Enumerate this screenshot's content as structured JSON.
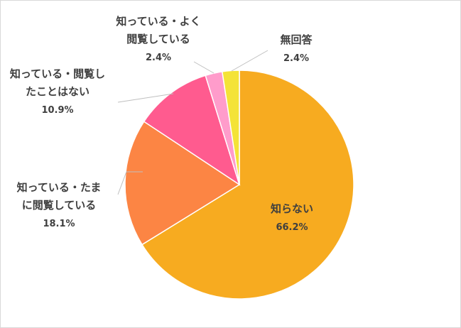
{
  "chart_data": {
    "type": "pie",
    "title": "",
    "start_angle_deg": 0,
    "direction": "clockwise",
    "legend": "none",
    "slices": [
      {
        "label_lines": [
          "知らない"
        ],
        "value": 66.2,
        "value_label": "66.2%",
        "color": "#F7AB20"
      },
      {
        "label_lines": [
          "知っている・たま",
          "に閲覧している"
        ],
        "value": 18.1,
        "value_label": "18.1%",
        "color": "#FC8544"
      },
      {
        "label_lines": [
          "知っている・閲覧し",
          "たことはない"
        ],
        "value": 10.9,
        "value_label": "10.9%",
        "color": "#FF5B8F"
      },
      {
        "label_lines": [
          "知っている・よく",
          "閲覧している"
        ],
        "value": 2.4,
        "value_label": "2.4%",
        "color": "#FF9CCB"
      },
      {
        "label_lines": [
          "無回答"
        ],
        "value": 2.4,
        "value_label": "2.4%",
        "color": "#F4E337"
      }
    ]
  }
}
